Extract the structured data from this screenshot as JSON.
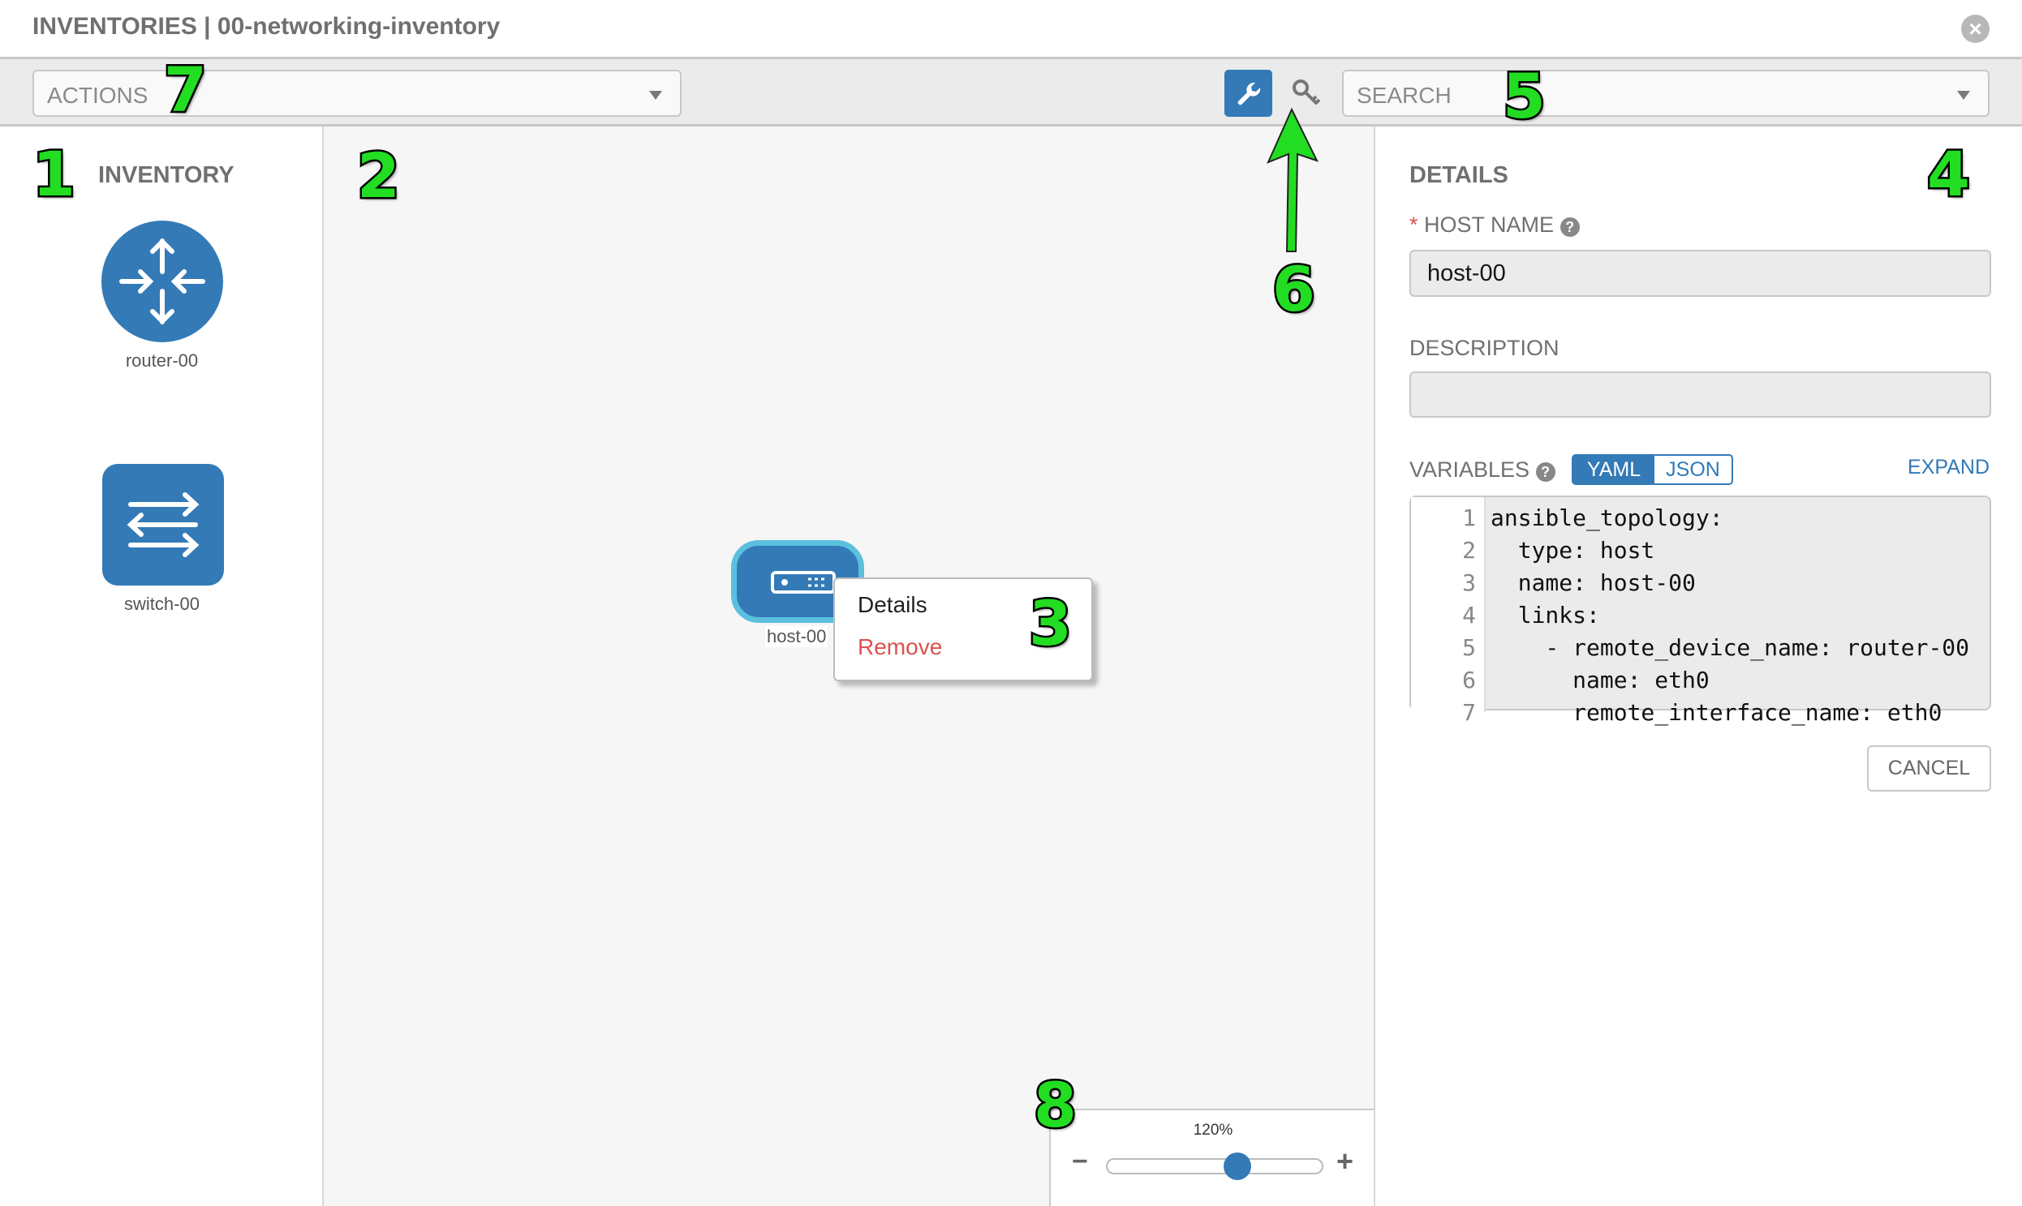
{
  "header": {
    "title": "INVENTORIES | 00-networking-inventory",
    "close_icon": "close-circle-icon"
  },
  "toolbar": {
    "actions_placeholder": "ACTIONS",
    "search_placeholder": "SEARCH",
    "wrench_icon": "wrench-icon",
    "key_icon": "key-icon"
  },
  "inventory": {
    "title": "INVENTORY",
    "items": [
      {
        "label": "router-00",
        "icon": "router-icon"
      },
      {
        "label": "switch-00",
        "icon": "switch-icon"
      }
    ]
  },
  "canvas": {
    "host": {
      "label": "host-00",
      "icon": "server-icon"
    },
    "context_menu": {
      "details": "Details",
      "remove": "Remove"
    },
    "zoom": {
      "level": "120%",
      "value_percent": 120,
      "minus": "−",
      "plus": "+"
    }
  },
  "details": {
    "title": "DETAILS",
    "host_name_label": "HOST NAME",
    "required_mark": "*",
    "host_name_value": "host-00",
    "description_label": "DESCRIPTION",
    "description_value": "",
    "variables_label": "VARIABLES",
    "yaml": "YAML",
    "json": "JSON",
    "yaml_selected": true,
    "expand": "EXPAND",
    "cancel": "CANCEL",
    "code_lines": [
      {
        "n": "1",
        "t": "ansible_topology:"
      },
      {
        "n": "2",
        "t": "  type: host"
      },
      {
        "n": "3",
        "t": "  name: host-00"
      },
      {
        "n": "4",
        "t": "  links:"
      },
      {
        "n": "5",
        "t": "    - remote_device_name: router-00"
      },
      {
        "n": "6",
        "t": "      name: eth0"
      },
      {
        "n": "7",
        "t": "      remote_interface_name: eth0"
      }
    ]
  },
  "annotations": [
    "1",
    "2",
    "3",
    "4",
    "5",
    "6",
    "7",
    "8"
  ],
  "colors": {
    "accent": "#337ab7",
    "remove": "#d9534f",
    "annotation": "#22dd22",
    "host_border": "#5bc0de"
  }
}
